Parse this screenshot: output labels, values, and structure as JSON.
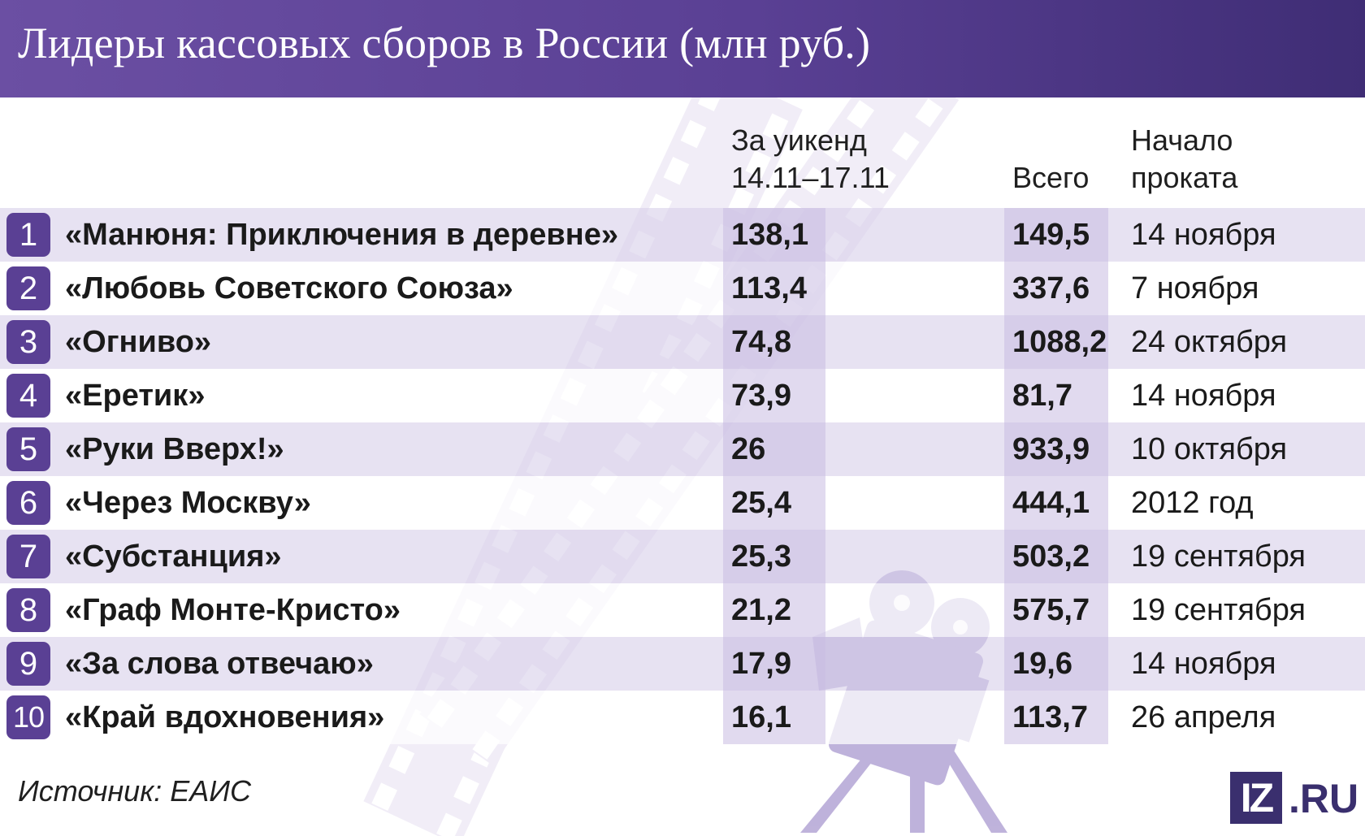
{
  "title": "Лидеры кассовых сборов в России (млн руб.)",
  "columns": {
    "weekend_line1": "За уикенд",
    "weekend_line2": "14.11–17.11",
    "total": "Всего",
    "start_line1": "Начало",
    "start_line2": "проката"
  },
  "chart_data": {
    "type": "table",
    "title": "Лидеры кассовых сборов в России (млн руб.)",
    "columns": [
      "",
      "",
      "За уикенд 14.11–17.11",
      "Всего",
      "Начало проката"
    ],
    "rows": [
      {
        "rank": "1",
        "film": "«Манюня: Приключения в деревне»",
        "weekend": "138,1",
        "total": "149,5",
        "start": "14 ноября"
      },
      {
        "rank": "2",
        "film": "«Любовь Советского Союза»",
        "weekend": "113,4",
        "total": "337,6",
        "start": "7 ноября"
      },
      {
        "rank": "3",
        "film": "«Огниво»",
        "weekend": "74,8",
        "total": "1088,2",
        "start": "24 октября"
      },
      {
        "rank": "4",
        "film": "«Еретик»",
        "weekend": "73,9",
        "total": "81,7",
        "start": "14 ноября"
      },
      {
        "rank": "5",
        "film": "«Руки Вверх!»",
        "weekend": "26",
        "total": "933,9",
        "start": "10 октября"
      },
      {
        "rank": "6",
        "film": "«Через Москву»",
        "weekend": "25,4",
        "total": "444,1",
        "start": "2012 год"
      },
      {
        "rank": "7",
        "film": "«Субстанция»",
        "weekend": "25,3",
        "total": "503,2",
        "start": "19 сентября"
      },
      {
        "rank": "8",
        "film": "«Граф Монте-Кристо»",
        "weekend": "21,2",
        "total": "575,7",
        "start": "19 сентября"
      },
      {
        "rank": "9",
        "film": "«За слова отвечаю»",
        "weekend": "17,9",
        "total": "19,6",
        "start": "14 ноября"
      },
      {
        "rank": "10",
        "film": "«Край вдохновения»",
        "weekend": "16,1",
        "total": "113,7",
        "start": "26 апреля"
      }
    ]
  },
  "source": "Источник: ЕАИС",
  "logo": {
    "mark": "IZ",
    "suffix": ".RU"
  },
  "colors": {
    "header": "#5a4094",
    "rank_badge": "#5a4094",
    "row_tint": "#d8d0ea",
    "logo": "#3a2f6e"
  },
  "decoration": {
    "background_icon": "film-strip-and-movie-camera"
  }
}
